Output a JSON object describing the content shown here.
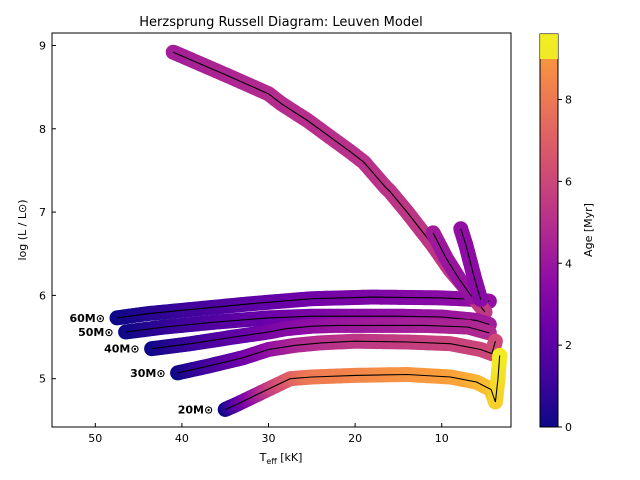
{
  "chart_data": {
    "type": "line",
    "title": "Herzsprung Russell Diagram: Leuven Model",
    "xlabel": "T",
    "xlabel_sub": "eff",
    "xlabel_unit": " [kK]",
    "ylabel": "log (L / L⊙)",
    "colorbar_label": "Age [Myr]",
    "xlim": [
      55,
      2
    ],
    "ylim": [
      4.42,
      9.15
    ],
    "x_inverted": true,
    "x_ticks": [
      50,
      40,
      30,
      20,
      10
    ],
    "y_ticks": [
      5,
      6,
      7,
      8,
      9
    ],
    "colorbar": {
      "cmap": "plasma",
      "min": 0,
      "max": 9.6,
      "ticks": [
        0,
        2,
        4,
        6,
        8
      ]
    },
    "series": [
      {
        "label": "60M⊙",
        "points": [
          {
            "x": 47.5,
            "y": 5.73,
            "age": 0.0
          },
          {
            "x": 44,
            "y": 5.78,
            "age": 0.5
          },
          {
            "x": 38,
            "y": 5.84,
            "age": 1.3
          },
          {
            "x": 32,
            "y": 5.9,
            "age": 2.0
          },
          {
            "x": 25,
            "y": 5.96,
            "age": 2.6
          },
          {
            "x": 18,
            "y": 5.98,
            "age": 3.0
          },
          {
            "x": 10,
            "y": 5.97,
            "age": 3.4
          },
          {
            "x": 6,
            "y": 5.95,
            "age": 3.6
          },
          {
            "x": 4.5,
            "y": 5.93,
            "age": 3.7
          }
        ]
      },
      {
        "label": "",
        "points": [
          {
            "x": 41,
            "y": 8.92,
            "age": 4.3
          },
          {
            "x": 35,
            "y": 8.65,
            "age": 4.6
          },
          {
            "x": 30,
            "y": 8.42,
            "age": 4.8
          },
          {
            "x": 28.5,
            "y": 8.3,
            "age": 4.9
          },
          {
            "x": 25.5,
            "y": 8.1,
            "age": 5.0
          },
          {
            "x": 20.5,
            "y": 7.72,
            "age": 5.1
          },
          {
            "x": 19,
            "y": 7.6,
            "age": 5.1
          },
          {
            "x": 16.5,
            "y": 7.3,
            "age": 5.2
          },
          {
            "x": 16,
            "y": 7.25,
            "age": 5.2
          },
          {
            "x": 14,
            "y": 7.0,
            "age": 5.3
          },
          {
            "x": 11,
            "y": 6.6,
            "age": 5.3
          },
          {
            "x": 9,
            "y": 6.3,
            "age": 5.4
          },
          {
            "x": 6.5,
            "y": 6.0,
            "age": 5.4
          },
          {
            "x": 5,
            "y": 5.8,
            "age": 5.5
          }
        ]
      },
      {
        "label": "",
        "points": [
          {
            "x": 11,
            "y": 6.75,
            "age": 4.2
          },
          {
            "x": 9.5,
            "y": 6.45,
            "age": 4.0
          },
          {
            "x": 8,
            "y": 6.2,
            "age": 3.9
          },
          {
            "x": 6.5,
            "y": 5.98,
            "age": 3.8
          }
        ]
      },
      {
        "label": "",
        "points": [
          {
            "x": 7.8,
            "y": 6.8,
            "age": 3.7
          },
          {
            "x": 7.2,
            "y": 6.6,
            "age": 3.6
          },
          {
            "x": 6.2,
            "y": 6.2,
            "age": 3.5
          },
          {
            "x": 5.5,
            "y": 5.95,
            "age": 3.4
          }
        ]
      },
      {
        "label": "50M⊙",
        "points": [
          {
            "x": 46.5,
            "y": 5.56,
            "age": 0.0
          },
          {
            "x": 42,
            "y": 5.62,
            "age": 0.8
          },
          {
            "x": 36,
            "y": 5.68,
            "age": 1.7
          },
          {
            "x": 30,
            "y": 5.73,
            "age": 2.4
          },
          {
            "x": 25,
            "y": 5.75,
            "age": 2.9
          },
          {
            "x": 20,
            "y": 5.75,
            "age": 3.3
          },
          {
            "x": 15,
            "y": 5.75,
            "age": 3.6
          },
          {
            "x": 10,
            "y": 5.74,
            "age": 3.9
          },
          {
            "x": 6,
            "y": 5.7,
            "age": 4.1
          },
          {
            "x": 4.5,
            "y": 5.65,
            "age": 4.2
          }
        ]
      },
      {
        "label": "40M⊙",
        "points": [
          {
            "x": 43.5,
            "y": 5.36,
            "age": 0.0
          },
          {
            "x": 39,
            "y": 5.42,
            "age": 1.0
          },
          {
            "x": 34,
            "y": 5.5,
            "age": 2.0
          },
          {
            "x": 30,
            "y": 5.56,
            "age": 2.8
          },
          {
            "x": 28,
            "y": 5.6,
            "age": 3.2
          },
          {
            "x": 25,
            "y": 5.63,
            "age": 3.6
          },
          {
            "x": 22,
            "y": 5.64,
            "age": 3.9
          },
          {
            "x": 17,
            "y": 5.64,
            "age": 4.2
          },
          {
            "x": 12,
            "y": 5.64,
            "age": 4.4
          },
          {
            "x": 7,
            "y": 5.62,
            "age": 4.6
          },
          {
            "x": 4.5,
            "y": 5.55,
            "age": 4.8
          }
        ]
      },
      {
        "label": "30M⊙",
        "points": [
          {
            "x": 40.5,
            "y": 5.07,
            "age": 0.0
          },
          {
            "x": 37,
            "y": 5.15,
            "age": 1.2
          },
          {
            "x": 33,
            "y": 5.25,
            "age": 2.5
          },
          {
            "x": 30,
            "y": 5.35,
            "age": 3.6
          },
          {
            "x": 27,
            "y": 5.4,
            "age": 4.5
          },
          {
            "x": 24,
            "y": 5.43,
            "age": 5.0
          },
          {
            "x": 20,
            "y": 5.45,
            "age": 5.3
          },
          {
            "x": 14,
            "y": 5.44,
            "age": 5.6
          },
          {
            "x": 9,
            "y": 5.42,
            "age": 5.8
          },
          {
            "x": 5.5,
            "y": 5.35,
            "age": 5.9
          },
          {
            "x": 4.2,
            "y": 5.3,
            "age": 6.0
          },
          {
            "x": 3.8,
            "y": 5.45,
            "age": 6.1
          }
        ]
      },
      {
        "label": "20M⊙",
        "points": [
          {
            "x": 35,
            "y": 4.63,
            "age": 0.0
          },
          {
            "x": 33.5,
            "y": 4.7,
            "age": 2.0
          },
          {
            "x": 31.5,
            "y": 4.8,
            "age": 4.0
          },
          {
            "x": 29.5,
            "y": 4.9,
            "age": 5.8
          },
          {
            "x": 27.5,
            "y": 5.0,
            "age": 7.0
          },
          {
            "x": 25,
            "y": 5.02,
            "age": 8.0
          },
          {
            "x": 20,
            "y": 5.04,
            "age": 8.4
          },
          {
            "x": 14,
            "y": 5.05,
            "age": 8.7
          },
          {
            "x": 9,
            "y": 5.02,
            "age": 8.9
          },
          {
            "x": 6,
            "y": 4.96,
            "age": 9.1
          },
          {
            "x": 4.3,
            "y": 4.87,
            "age": 9.2
          },
          {
            "x": 3.8,
            "y": 4.72,
            "age": 9.3
          },
          {
            "x": 3.5,
            "y": 5.0,
            "age": 9.4
          },
          {
            "x": 3.3,
            "y": 5.28,
            "age": 9.5
          }
        ]
      }
    ]
  }
}
